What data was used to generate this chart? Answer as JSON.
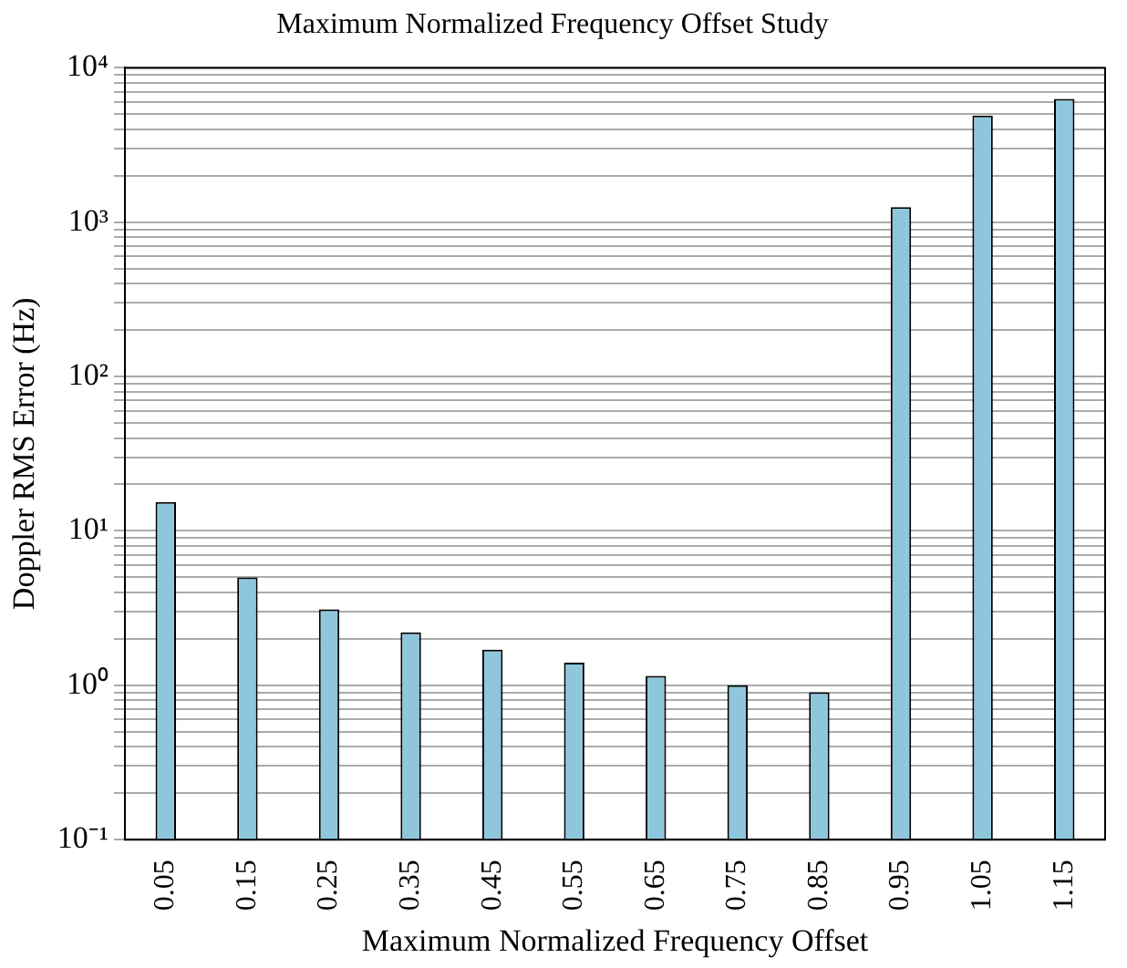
{
  "chart_data": {
    "type": "bar",
    "title": "Maximum Normalized Frequency Offset Study",
    "xlabel": "Maximum Normalized Frequency Offset",
    "ylabel": "Doppler RMS Error (Hz)",
    "categories": [
      "0.05",
      "0.15",
      "0.25",
      "0.35",
      "0.45",
      "0.55",
      "0.65",
      "0.75",
      "0.85",
      "0.95",
      "1.05",
      "1.15"
    ],
    "values": [
      15.4,
      5.0,
      3.1,
      2.2,
      1.7,
      1.4,
      1.15,
      1.0,
      0.9,
      1250,
      4900,
      6300
    ],
    "color": "#8ec7dc",
    "log": "y",
    "ylim": [
      0.1,
      10000
    ],
    "yticks": [
      {
        "value": 0.1,
        "label": "10⁻¹"
      },
      {
        "value": 0.2,
        "label": null
      },
      {
        "value": 0.3,
        "label": null
      },
      {
        "value": 0.4,
        "label": null
      },
      {
        "value": 0.5,
        "label": null
      },
      {
        "value": 0.6,
        "label": null
      },
      {
        "value": 0.7,
        "label": null
      },
      {
        "value": 0.8,
        "label": null
      },
      {
        "value": 0.9,
        "label": null
      },
      {
        "value": 1,
        "label": "10⁰"
      },
      {
        "value": 2,
        "label": null
      },
      {
        "value": 3,
        "label": null
      },
      {
        "value": 4,
        "label": null
      },
      {
        "value": 5,
        "label": null
      },
      {
        "value": 6,
        "label": null
      },
      {
        "value": 7,
        "label": null
      },
      {
        "value": 8,
        "label": null
      },
      {
        "value": 9,
        "label": null
      },
      {
        "value": 10,
        "label": "10¹"
      },
      {
        "value": 20,
        "label": null
      },
      {
        "value": 30,
        "label": null
      },
      {
        "value": 40,
        "label": null
      },
      {
        "value": 50,
        "label": null
      },
      {
        "value": 60,
        "label": null
      },
      {
        "value": 70,
        "label": null
      },
      {
        "value": 80,
        "label": null
      },
      {
        "value": 90,
        "label": null
      },
      {
        "value": 100,
        "label": "10²"
      },
      {
        "value": 200,
        "label": null
      },
      {
        "value": 300,
        "label": null
      },
      {
        "value": 400,
        "label": null
      },
      {
        "value": 500,
        "label": null
      },
      {
        "value": 600,
        "label": null
      },
      {
        "value": 700,
        "label": null
      },
      {
        "value": 800,
        "label": null
      },
      {
        "value": 900,
        "label": null
      },
      {
        "value": 1000,
        "label": "10³"
      },
      {
        "value": 2000,
        "label": null
      },
      {
        "value": 3000,
        "label": null
      },
      {
        "value": 4000,
        "label": null
      },
      {
        "value": 5000,
        "label": null
      },
      {
        "value": 6000,
        "label": null
      },
      {
        "value": 7000,
        "label": null
      },
      {
        "value": 8000,
        "label": null
      },
      {
        "value": 9000,
        "label": null
      },
      {
        "value": 10000,
        "label": "10⁴"
      }
    ],
    "grid": "y",
    "legend": false
  }
}
